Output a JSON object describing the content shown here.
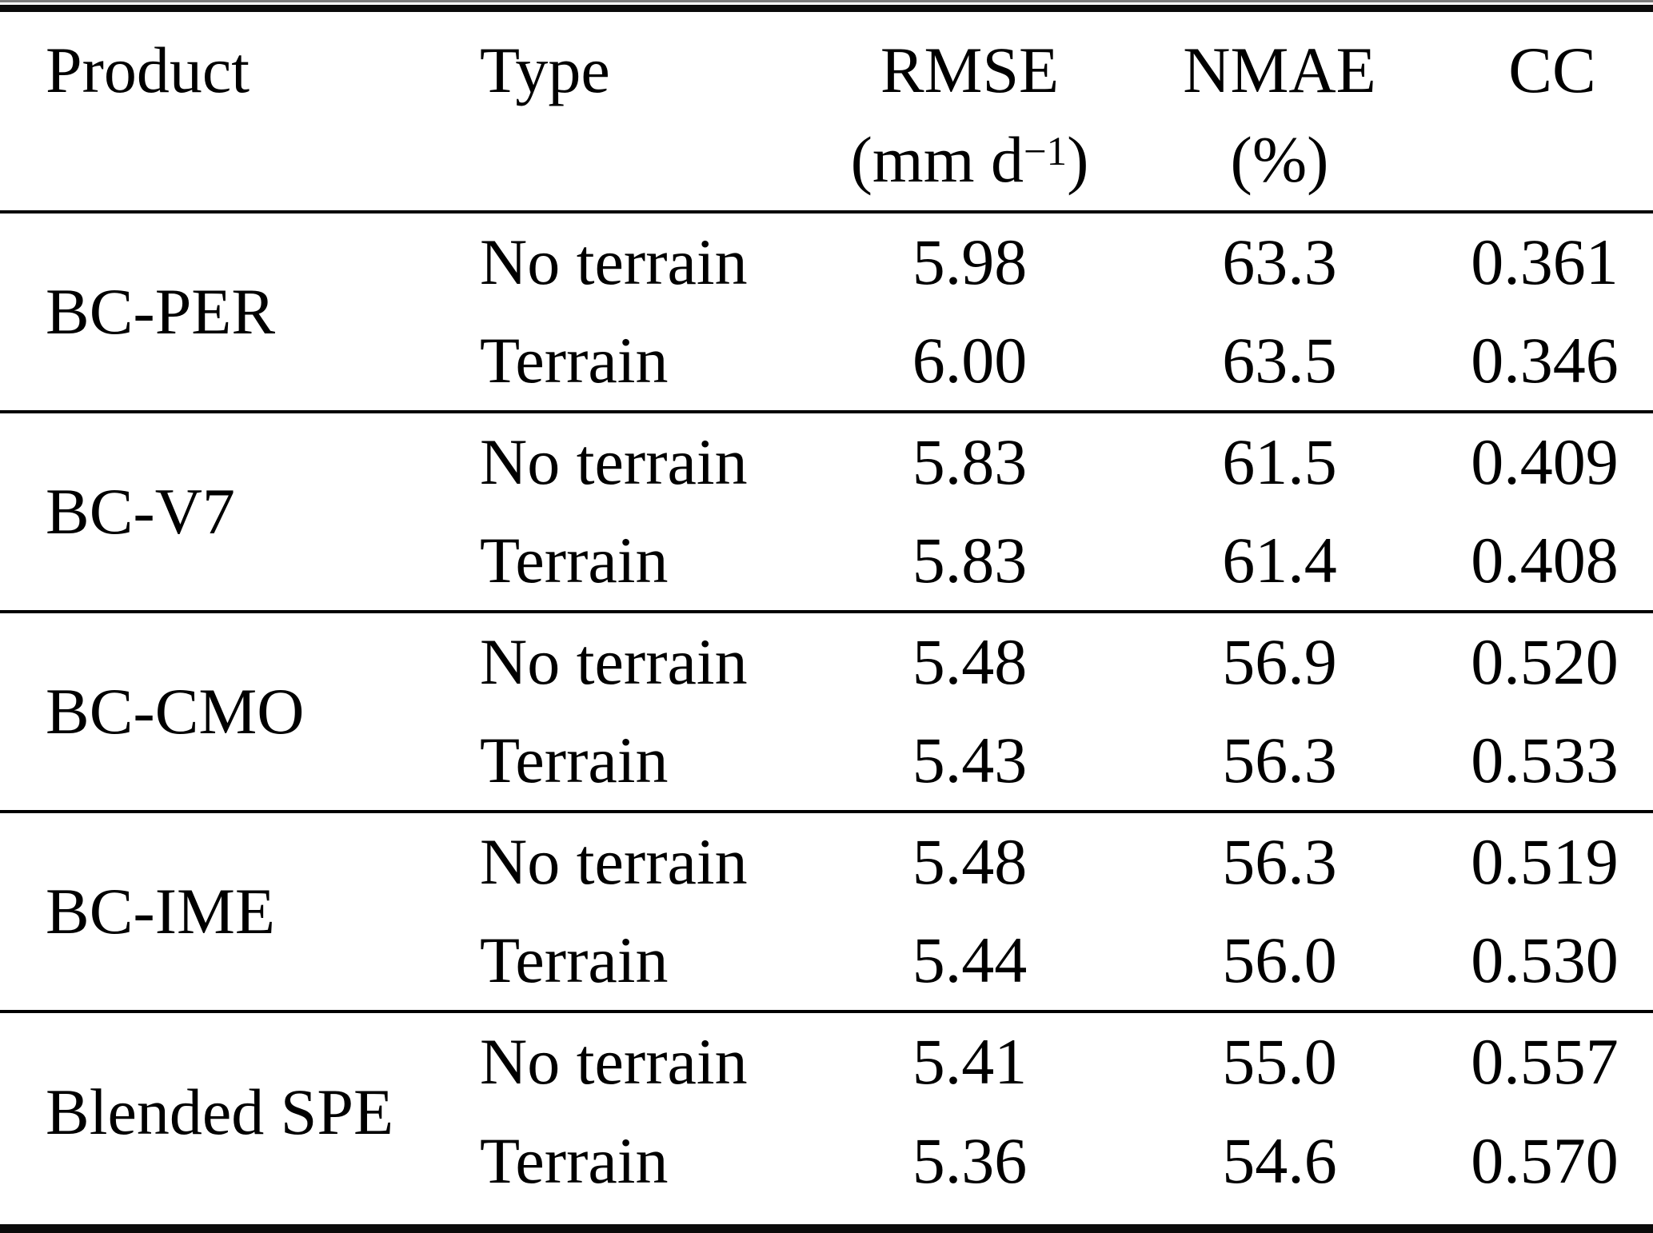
{
  "table": {
    "columns": {
      "product": "Product",
      "type": "Type",
      "rmse": "RMSE",
      "rmse_unit_open": "(mm d",
      "rmse_unit_sup": "−1",
      "rmse_unit_close": ")",
      "nmae": "NMAE",
      "nmae_unit": "(%)",
      "cc": "CC"
    },
    "groups": [
      {
        "product": "BC-PER",
        "rows": [
          {
            "type": "No terrain",
            "rmse": "5.98",
            "nmae": "63.3",
            "cc": "0.361"
          },
          {
            "type": "Terrain",
            "rmse": "6.00",
            "nmae": "63.5",
            "cc": "0.346"
          }
        ]
      },
      {
        "product": "BC-V7",
        "rows": [
          {
            "type": "No terrain",
            "rmse": "5.83",
            "nmae": "61.5",
            "cc": "0.409"
          },
          {
            "type": "Terrain",
            "rmse": "5.83",
            "nmae": "61.4",
            "cc": "0.408"
          }
        ]
      },
      {
        "product": "BC-CMO",
        "rows": [
          {
            "type": "No terrain",
            "rmse": "5.48",
            "nmae": "56.9",
            "cc": "0.520"
          },
          {
            "type": "Terrain",
            "rmse": "5.43",
            "nmae": "56.3",
            "cc": "0.533"
          }
        ]
      },
      {
        "product": "BC-IME",
        "rows": [
          {
            "type": "No terrain",
            "rmse": "5.48",
            "nmae": "56.3",
            "cc": "0.519"
          },
          {
            "type": "Terrain",
            "rmse": "5.44",
            "nmae": "56.0",
            "cc": "0.530"
          }
        ]
      },
      {
        "product": "Blended SPE",
        "rows": [
          {
            "type": "No terrain",
            "rmse": "5.41",
            "nmae": "55.0",
            "cc": "0.557"
          },
          {
            "type": "Terrain",
            "rmse": "5.36",
            "nmae": "54.6",
            "cc": "0.570"
          }
        ]
      }
    ]
  }
}
